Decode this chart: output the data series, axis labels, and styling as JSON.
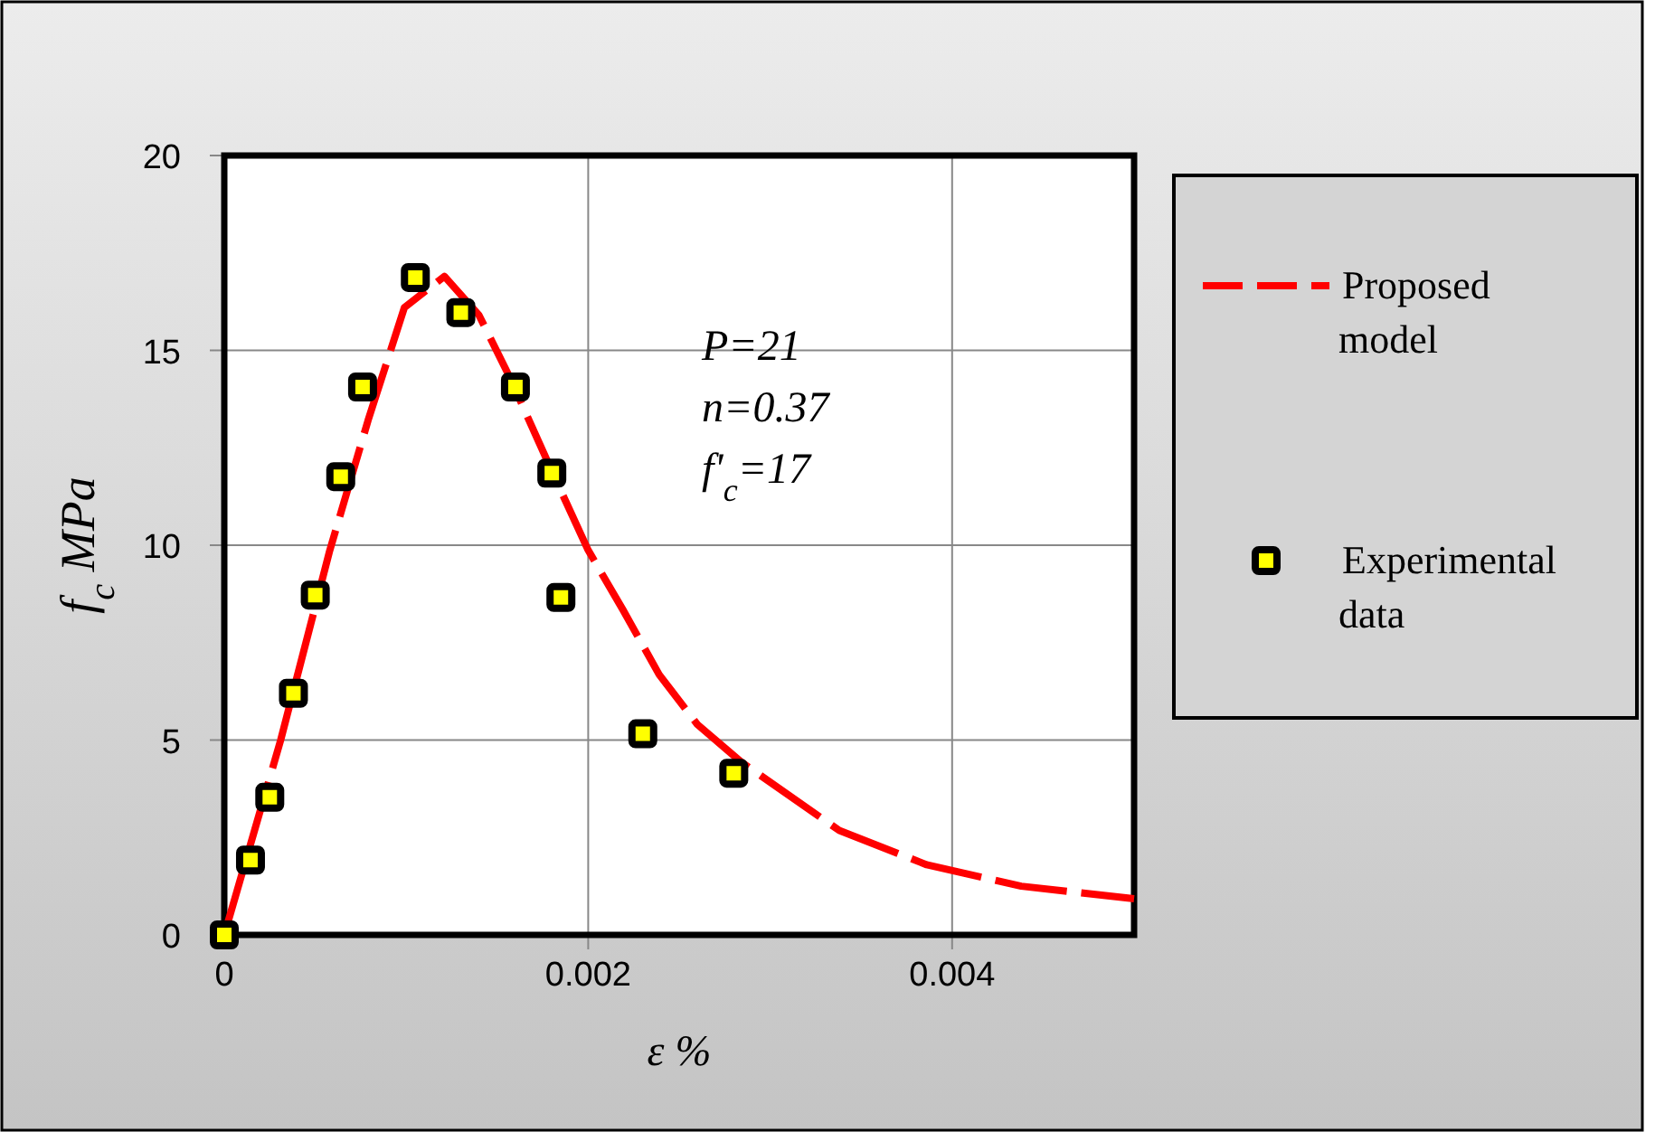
{
  "chart_data": {
    "type": "scatter",
    "xlabel": "ε %",
    "ylabel": "f$_{c}$ MPa",
    "xlim": [
      0,
      0.005
    ],
    "xticks": [
      0,
      0.002,
      0.004
    ],
    "ylim": [
      0,
      20
    ],
    "yticks": [
      0,
      5,
      10,
      15,
      20
    ],
    "grid": true,
    "legend": "right",
    "annotations": [
      "P=21",
      "n=0.37",
      "f'$_{c}$=17"
    ],
    "series": [
      {
        "name": "Proposed model",
        "type": "line",
        "color": "#ff0000",
        "line_style": "dashed",
        "marker": "none",
        "x": [
          0,
          0.00031,
          0.00058,
          0.00079,
          0.00099,
          0.00121,
          0.0014,
          0.00157,
          0.00181,
          0.002,
          0.00219,
          0.00239,
          0.0026,
          0.00284,
          0.00338,
          0.00386,
          0.00438,
          0.005
        ],
        "values": [
          0,
          5,
          9.87,
          13.2,
          16.1,
          16.9,
          15.9,
          14.3,
          11.8,
          9.87,
          8.35,
          6.68,
          5.4,
          4.44,
          2.68,
          1.8,
          1.25,
          0.93
        ]
      },
      {
        "name": "Experimental data",
        "color": "#ffff00",
        "marker": "square",
        "x": [
          0,
          0.000144,
          0.00025,
          0.00038,
          0.0005,
          0.00064,
          0.00076,
          0.00105,
          0.0013,
          0.0016,
          0.0018,
          0.00185,
          0.0023,
          0.0028
        ],
        "values": [
          0,
          1.92,
          3.53,
          6.2,
          8.72,
          11.76,
          14.06,
          16.87,
          15.97,
          14.06,
          11.85,
          8.66,
          5.16,
          4.15
        ]
      }
    ]
  }
}
